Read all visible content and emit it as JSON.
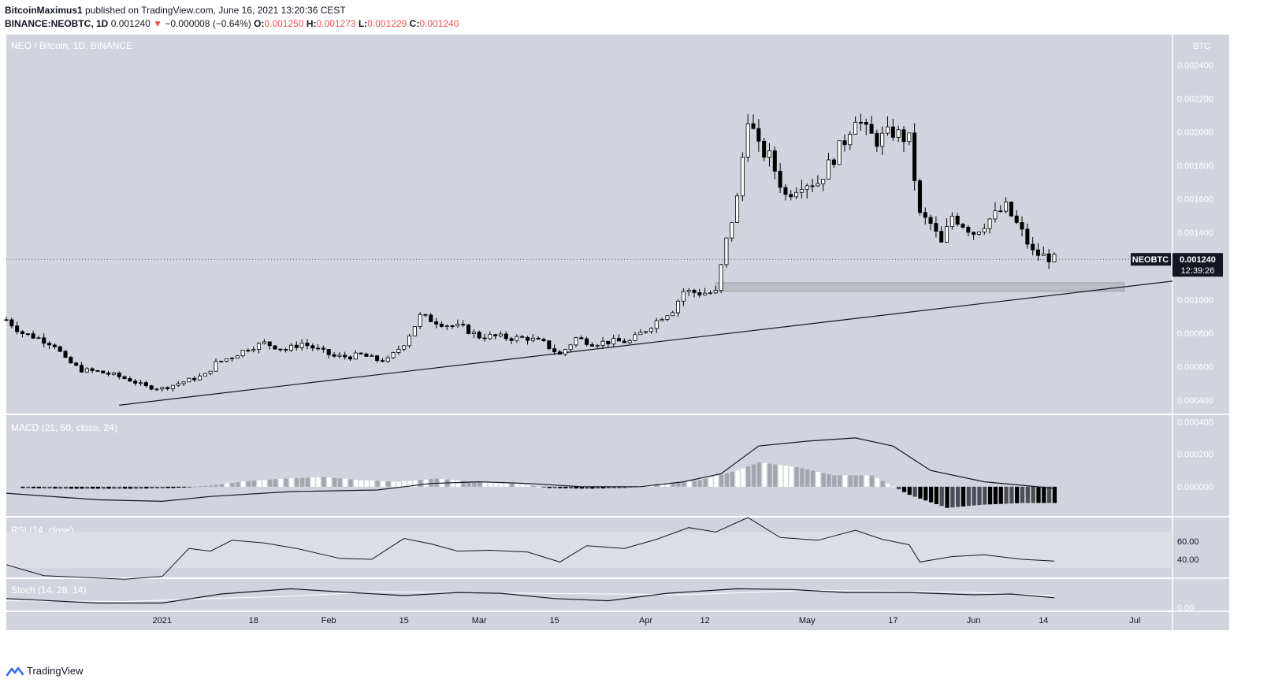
{
  "header": {
    "author": "BitcoinMaximus1",
    "published_text": "published on TradingView.com, June 16, 2021 13:20:36 CEST",
    "symbol_full": "BINANCE:NEOBTC, 1D",
    "last": "0.001240",
    "change": "−0.000008 (−0.64%)",
    "o_label": "O:",
    "o": "0.001250",
    "h_label": "H:",
    "h": "0.001273",
    "l_label": "L:",
    "l": "0.001229",
    "c_label": "C:",
    "c": "0.001240"
  },
  "footer": {
    "brand": "TradingView"
  },
  "colors": {
    "pane_bg": "#d1d4dc",
    "bear": "#000000",
    "bull": "#ffffff",
    "line": "#131722",
    "down_accent": "#ef5350"
  },
  "chart_data": [
    {
      "type": "candlestick",
      "title": "NEO / Bitcoin, 1D, BINANCE",
      "axis_unit": "BTC",
      "y_ticks": [
        "0.002400",
        "0.002200",
        "0.002000",
        "0.001800",
        "0.001600",
        "0.001400",
        "0.001200",
        "0.001000",
        "0.000800",
        "0.000600",
        "0.000400"
      ],
      "y_tick_values": [
        0.0024,
        0.0022,
        0.002,
        0.0018,
        0.0016,
        0.0014,
        0.0012,
        0.001,
        0.0008,
        0.0006,
        0.0004
      ],
      "x_ticks": [
        "2021",
        "18",
        "Feb",
        "15",
        "Mar",
        "15",
        "Apr",
        "12",
        "May",
        "17",
        "Jun",
        "14",
        "Jul"
      ],
      "x_tick_dates": [
        "2021-01-01",
        "2021-01-18",
        "2021-02-01",
        "2021-02-15",
        "2021-03-01",
        "2021-03-15",
        "2021-04-01",
        "2021-04-12",
        "2021-05-01",
        "2021-05-17",
        "2021-06-01",
        "2021-06-14",
        "2021-07-01"
      ],
      "ylim": [
        0.00032,
        0.00258
      ],
      "xlim": [
        "2020-12-03",
        "2021-07-08"
      ],
      "price_label": {
        "symbol": "NEOBTC",
        "price": "0.001240",
        "countdown": "12:39:26",
        "value": 0.00124
      },
      "support_zone": {
        "x_start": "2021-04-14",
        "x_end": "2021-06-29",
        "y_low": 0.00105,
        "y_high": 0.0011
      },
      "trendline": {
        "x_start": "2020-12-24",
        "y_start": 0.00037,
        "x_end": "2021-07-08",
        "y_end": 0.00111
      },
      "price_path": [
        [
          "2020-12-03",
          0.00088
        ],
        [
          "2020-12-06",
          0.0008
        ],
        [
          "2020-12-09",
          0.00077
        ],
        [
          "2020-12-12",
          0.00073
        ],
        [
          "2020-12-14",
          0.00064
        ],
        [
          "2020-12-17",
          0.00058
        ],
        [
          "2020-12-20",
          0.00057
        ],
        [
          "2020-12-23",
          0.00055
        ],
        [
          "2020-12-26",
          0.00052
        ],
        [
          "2020-12-29",
          0.00048
        ],
        [
          "2021-01-01",
          0.00047
        ],
        [
          "2021-01-03",
          0.00049
        ],
        [
          "2021-01-06",
          0.00052
        ],
        [
          "2021-01-09",
          0.00055
        ],
        [
          "2021-01-11",
          0.00062
        ],
        [
          "2021-01-14",
          0.00066
        ],
        [
          "2021-01-17",
          0.00071
        ],
        [
          "2021-01-20",
          0.00074
        ],
        [
          "2021-01-24",
          0.0007
        ],
        [
          "2021-01-27",
          0.00074
        ],
        [
          "2021-01-30",
          0.0007
        ],
        [
          "2021-02-02",
          0.00066
        ],
        [
          "2021-02-05",
          0.00066
        ],
        [
          "2021-02-07",
          0.00067
        ],
        [
          "2021-02-10",
          0.00064
        ],
        [
          "2021-02-12",
          0.00064
        ],
        [
          "2021-02-15",
          0.00074
        ],
        [
          "2021-02-18",
          0.0009
        ],
        [
          "2021-02-20",
          0.00088
        ],
        [
          "2021-02-23",
          0.00085
        ],
        [
          "2021-02-26",
          0.00083
        ],
        [
          "2021-03-01",
          0.00078
        ],
        [
          "2021-03-04",
          0.00078
        ],
        [
          "2021-03-07",
          0.00077
        ],
        [
          "2021-03-10",
          0.00077
        ],
        [
          "2021-03-13",
          0.00074
        ],
        [
          "2021-03-16",
          0.00067
        ],
        [
          "2021-03-19",
          0.00077
        ],
        [
          "2021-03-22",
          0.00074
        ],
        [
          "2021-03-26",
          0.00075
        ],
        [
          "2021-03-29",
          0.00075
        ],
        [
          "2021-04-01",
          0.00082
        ],
        [
          "2021-04-04",
          0.0009
        ],
        [
          "2021-04-06",
          0.00094
        ],
        [
          "2021-04-08",
          0.00105
        ],
        [
          "2021-04-11",
          0.00104
        ],
        [
          "2021-04-14",
          0.00104
        ],
        [
          "2021-04-16",
          0.00135
        ],
        [
          "2021-04-18",
          0.0016
        ],
        [
          "2021-04-20",
          0.0021
        ],
        [
          "2021-04-22",
          0.0019
        ],
        [
          "2021-04-24",
          0.00185
        ],
        [
          "2021-04-27",
          0.00162
        ],
        [
          "2021-04-30",
          0.0017
        ],
        [
          "2021-05-03",
          0.0017
        ],
        [
          "2021-05-06",
          0.00185
        ],
        [
          "2021-05-08",
          0.00195
        ],
        [
          "2021-05-10",
          0.0021
        ],
        [
          "2021-05-12",
          0.002
        ],
        [
          "2021-05-14",
          0.00195
        ],
        [
          "2021-05-17",
          0.002
        ],
        [
          "2021-05-20",
          0.00195
        ],
        [
          "2021-05-22",
          0.0015
        ],
        [
          "2021-05-24",
          0.00145
        ],
        [
          "2021-05-26",
          0.00133
        ],
        [
          "2021-05-28",
          0.0015
        ],
        [
          "2021-06-01",
          0.0014
        ],
        [
          "2021-06-04",
          0.00148
        ],
        [
          "2021-06-07",
          0.00155
        ],
        [
          "2021-06-10",
          0.0014
        ],
        [
          "2021-06-12",
          0.00128
        ],
        [
          "2021-06-16",
          0.00124
        ]
      ]
    },
    {
      "type": "line",
      "title": "MACD (21, 50, close, 24)",
      "y_ticks": [
        "0.000400",
        "0.000200",
        "0.000000"
      ],
      "y_tick_values": [
        0.0004,
        0.0002,
        0
      ],
      "ylim": [
        -0.00018,
        0.00044
      ],
      "series": [
        {
          "values": [
            [
              "2020-12-03",
              -4e-05
            ],
            [
              "2020-12-20",
              -8e-05
            ],
            [
              "2021-01-01",
              -9e-05
            ],
            [
              "2021-01-10",
              -6e-05
            ],
            [
              "2021-01-25",
              -3e-05
            ],
            [
              "2021-02-10",
              -2e-05
            ],
            [
              "2021-02-20",
              2e-05
            ],
            [
              "2021-03-01",
              3e-05
            ],
            [
              "2021-03-10",
              2e-05
            ],
            [
              "2021-03-20",
              0.0
            ],
            [
              "2021-03-31",
              0.0
            ],
            [
              "2021-04-08",
              3e-05
            ],
            [
              "2021-04-15",
              8e-05
            ],
            [
              "2021-04-22",
              0.00025
            ],
            [
              "2021-05-01",
              0.00028
            ],
            [
              "2021-05-10",
              0.0003
            ],
            [
              "2021-05-17",
              0.00025
            ],
            [
              "2021-05-24",
              0.0001
            ],
            [
              "2021-06-03",
              3e-05
            ],
            [
              "2021-06-16",
              -1e-05
            ]
          ]
        }
      ],
      "histogram": [
        [
          "2020-12-06",
          -8e-06
        ],
        [
          "2020-12-13",
          -1.2e-05
        ],
        [
          "2020-12-20",
          -1.2e-05
        ],
        [
          "2020-12-27",
          -1.2e-05
        ],
        [
          "2021-01-03",
          -8e-06
        ],
        [
          "2021-01-10",
          8e-06
        ],
        [
          "2021-01-17",
          3.5e-05
        ],
        [
          "2021-01-24",
          5e-05
        ],
        [
          "2021-01-31",
          6e-05
        ],
        [
          "2021-02-07",
          4e-05
        ],
        [
          "2021-02-14",
          3e-05
        ],
        [
          "2021-02-21",
          5e-05
        ],
        [
          "2021-02-28",
          3e-05
        ],
        [
          "2021-03-07",
          2e-05
        ],
        [
          "2021-03-14",
          -8e-06
        ],
        [
          "2021-03-21",
          -1.2e-05
        ],
        [
          "2021-03-28",
          -8e-06
        ],
        [
          "2021-04-04",
          2e-05
        ],
        [
          "2021-04-11",
          4e-05
        ],
        [
          "2021-04-18",
          0.0001
        ],
        [
          "2021-04-22",
          0.00015
        ],
        [
          "2021-04-29",
          0.00012
        ],
        [
          "2021-05-06",
          7e-05
        ],
        [
          "2021-05-13",
          7e-05
        ],
        [
          "2021-05-20",
          -5e-05
        ],
        [
          "2021-05-27",
          -0.00013
        ],
        [
          "2021-06-03",
          -0.00011
        ],
        [
          "2021-06-10",
          -0.0001
        ],
        [
          "2021-06-16",
          -0.0001
        ]
      ]
    },
    {
      "type": "line",
      "title": "RSI (14, close)",
      "y_ticks": [
        "60.00",
        "40.00"
      ],
      "y_tick_values": [
        60,
        40
      ],
      "ylim": [
        20,
        86
      ],
      "band": [
        30,
        70
      ],
      "series": [
        {
          "values": [
            [
              "2020-12-03",
              34
            ],
            [
              "2020-12-10",
              22
            ],
            [
              "2020-12-25",
              18
            ],
            [
              "2021-01-01",
              21
            ],
            [
              "2021-01-06",
              52
            ],
            [
              "2021-01-10",
              49
            ],
            [
              "2021-01-14",
              61
            ],
            [
              "2021-01-20",
              58
            ],
            [
              "2021-01-26",
              52
            ],
            [
              "2021-02-03",
              41
            ],
            [
              "2021-02-09",
              40
            ],
            [
              "2021-02-15",
              63
            ],
            [
              "2021-02-20",
              57
            ],
            [
              "2021-02-25",
              49
            ],
            [
              "2021-03-03",
              50
            ],
            [
              "2021-03-10",
              48
            ],
            [
              "2021-03-16",
              37
            ],
            [
              "2021-03-21",
              55
            ],
            [
              "2021-03-28",
              52
            ],
            [
              "2021-04-03",
              62
            ],
            [
              "2021-04-09",
              75
            ],
            [
              "2021-04-14",
              70
            ],
            [
              "2021-04-20",
              86
            ],
            [
              "2021-04-26",
              64
            ],
            [
              "2021-05-03",
              61
            ],
            [
              "2021-05-10",
              72
            ],
            [
              "2021-05-15",
              62
            ],
            [
              "2021-05-20",
              56
            ],
            [
              "2021-05-22",
              37
            ],
            [
              "2021-05-28",
              43
            ],
            [
              "2021-06-03",
              45
            ],
            [
              "2021-06-10",
              40
            ],
            [
              "2021-06-16",
              38
            ]
          ]
        }
      ]
    },
    {
      "type": "line",
      "title": "Stoch (14, 28, 14)",
      "y_ticks": [
        "0.00"
      ],
      "y_tick_values": [
        0
      ],
      "ylim": [
        -4,
        38
      ],
      "series": [
        {
          "values": [
            [
              "2020-12-03",
              12
            ],
            [
              "2020-12-20",
              6
            ],
            [
              "2021-01-01",
              6
            ],
            [
              "2021-01-12",
              18
            ],
            [
              "2021-01-25",
              25
            ],
            [
              "2021-02-05",
              20
            ],
            [
              "2021-02-15",
              16
            ],
            [
              "2021-02-25",
              20
            ],
            [
              "2021-03-05",
              19
            ],
            [
              "2021-03-15",
              12
            ],
            [
              "2021-03-25",
              9
            ],
            [
              "2021-04-05",
              19
            ],
            [
              "2021-04-18",
              25
            ],
            [
              "2021-04-28",
              24
            ],
            [
              "2021-05-08",
              20
            ],
            [
              "2021-05-20",
              20
            ],
            [
              "2021-06-01",
              17
            ],
            [
              "2021-06-08",
              18
            ],
            [
              "2021-06-16",
              13
            ]
          ]
        },
        {
          "values": [
            [
              "2020-12-03",
              9
            ],
            [
              "2020-12-25",
              8
            ],
            [
              "2021-01-10",
              12
            ],
            [
              "2021-01-25",
              15
            ],
            [
              "2021-02-10",
              21
            ],
            [
              "2021-02-25",
              20
            ],
            [
              "2021-03-10",
              19
            ],
            [
              "2021-03-25",
              18
            ],
            [
              "2021-04-08",
              17
            ],
            [
              "2021-04-20",
              20
            ],
            [
              "2021-05-01",
              23
            ],
            [
              "2021-05-15",
              22
            ],
            [
              "2021-06-01",
              20
            ],
            [
              "2021-06-16",
              16
            ]
          ]
        }
      ]
    }
  ]
}
